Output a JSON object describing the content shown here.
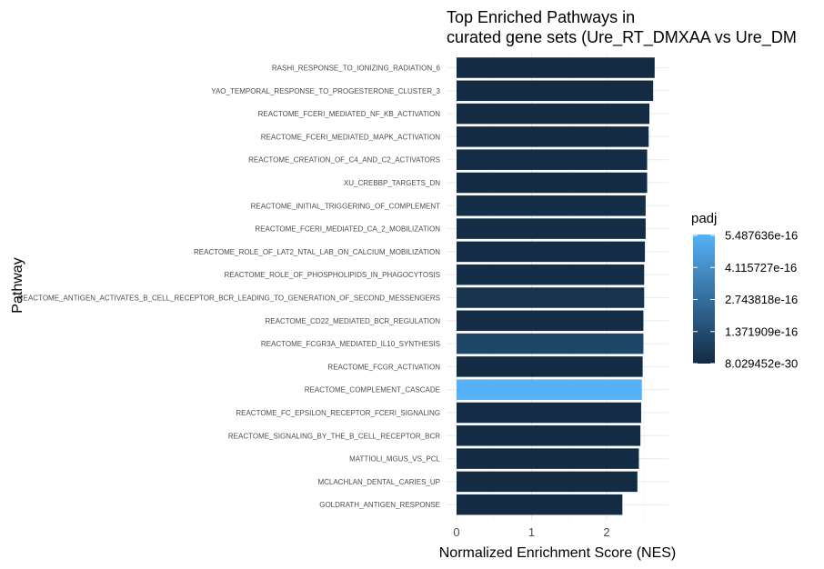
{
  "chart_data": {
    "type": "bar",
    "orientation": "horizontal",
    "title": [
      "Top Enriched Pathways in",
      "curated gene sets (Ure_RT_DMXAA vs Ure_DM"
    ],
    "xlabel": "Normalized Enrichment Score (NES)",
    "ylabel": "Pathway",
    "xlim": [
      0,
      2.8
    ],
    "xticks": [
      "0",
      "1",
      "2"
    ],
    "grid": true,
    "categories": [
      "RASHI_RESPONSE_TO_IONIZING_RADIATION_6",
      "YAO_TEMPORAL_RESPONSE_TO_PROGESTERONE_CLUSTER_3",
      "REACTOME_FCERI_MEDIATED_NF_KB_ACTIVATION",
      "REACTOME_FCERI_MEDIATED_MAPK_ACTIVATION",
      "REACTOME_CREATION_OF_C4_AND_C2_ACTIVATORS",
      "XU_CREBBP_TARGETS_DN",
      "REACTOME_INITIAL_TRIGGERING_OF_COMPLEMENT",
      "REACTOME_FCERI_MEDIATED_CA_2_MOBILIZATION",
      "REACTOME_ROLE_OF_LAT2_NTAL_LAB_ON_CALCIUM_MOBILIZATION",
      "REACTOME_ROLE_OF_PHOSPHOLIPIDS_IN_PHAGOCYTOSIS",
      "REACTOME_ANTIGEN_ACTIVATES_B_CELL_RECEPTOR_BCR_LEADING_TO_GENERATION_OF_SECOND_MESSENGERS",
      "REACTOME_CD22_MEDIATED_BCR_REGULATION",
      "REACTOME_FCGR3A_MEDIATED_IL10_SYNTHESIS",
      "REACTOME_FCGR_ACTIVATION",
      "REACTOME_COMPLEMENT_CASCADE",
      "REACTOME_FC_EPSILON_RECEPTOR_FCERI_SIGNALING",
      "REACTOME_SIGNALING_BY_THE_B_CELL_RECEPTOR_BCR",
      "MATTIOLI_MGUS_VS_PCL",
      "MCLACHLAN_DENTAL_CARIES_UP",
      "GOLDRATH_ANTIGEN_RESPONSE"
    ],
    "values": [
      2.64,
      2.62,
      2.57,
      2.56,
      2.54,
      2.54,
      2.52,
      2.52,
      2.51,
      2.5,
      2.5,
      2.49,
      2.49,
      2.48,
      2.47,
      2.46,
      2.45,
      2.43,
      2.41,
      2.21
    ],
    "padj_fraction": [
      0.0,
      0.0,
      0.0,
      0.0,
      0.01,
      0.0,
      0.02,
      0.01,
      0.01,
      0.02,
      0.06,
      0.01,
      0.2,
      0.0,
      1.0,
      0.01,
      0.0,
      0.0,
      0.0,
      0.0
    ],
    "legend": {
      "title": "padj",
      "labels": [
        "5.487636e-16",
        "4.115727e-16",
        "2.743818e-16",
        "1.371909e-16",
        "8.029452e-30"
      ],
      "color_low": "#132B43",
      "color_high": "#56B1F7",
      "placement": "right"
    }
  }
}
